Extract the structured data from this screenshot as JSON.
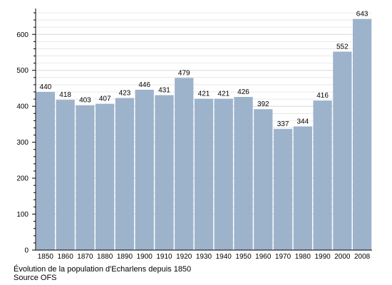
{
  "chart_data": {
    "type": "bar",
    "categories": [
      "1850",
      "1860",
      "1870",
      "1880",
      "1890",
      "1900",
      "1910",
      "1920",
      "1930",
      "1940",
      "1950",
      "1960",
      "1970",
      "1980",
      "1990",
      "2000",
      "2008"
    ],
    "values": [
      440,
      418,
      403,
      407,
      423,
      446,
      431,
      479,
      421,
      421,
      426,
      392,
      337,
      344,
      416,
      552,
      643
    ],
    "data_labels": [
      "440",
      "418",
      "403",
      "407",
      "423",
      "446",
      "431",
      "479",
      "421",
      "421",
      "426",
      "392",
      "337",
      "344",
      "416",
      "552",
      "643"
    ],
    "ylim": [
      0,
      660
    ],
    "yticks": [
      0,
      100,
      200,
      300,
      400,
      500,
      600
    ],
    "ytick_labels": [
      "0",
      "100",
      "200",
      "300",
      "400",
      "500",
      "600"
    ],
    "grid": true,
    "bar_color": "#9db3cc",
    "grid_color": "#d8d8d8",
    "caption_line1": "Évolution de la population d'Echarlens depuis 1850",
    "caption_line2": "Source OFS"
  }
}
